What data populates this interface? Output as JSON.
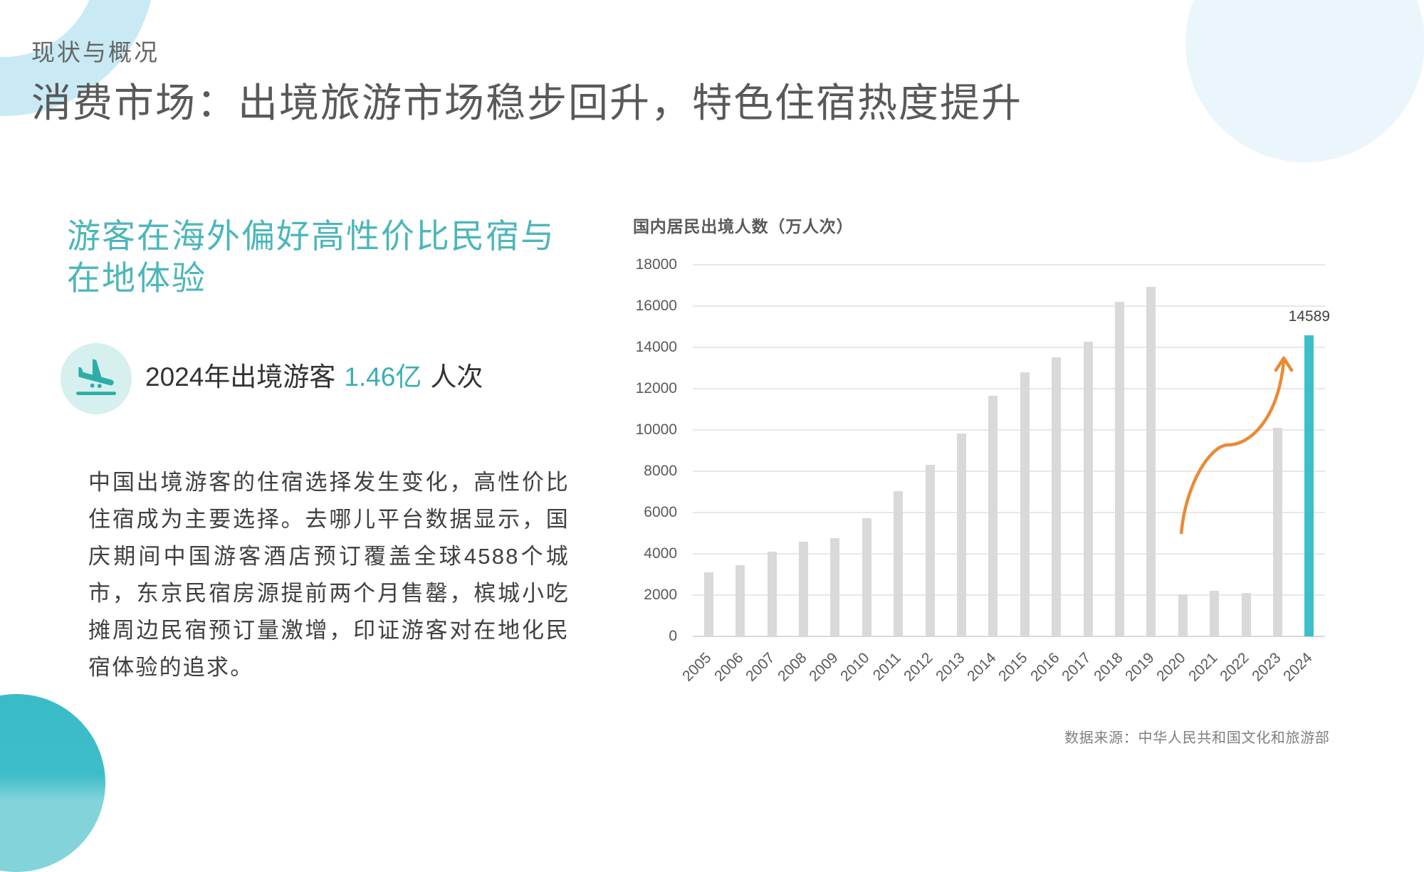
{
  "header": {
    "section_label": "现状与概况",
    "title": "消费市场：出境旅游市场稳步回升，特色住宿热度提升"
  },
  "left": {
    "subheading_lines": [
      "游客在海外偏好高性价比民宿与",
      "在地体验"
    ],
    "stat": {
      "icon": "flight-land-icon",
      "prefix": "2024年出境游客",
      "value": "1.46亿",
      "suffix": "人次"
    },
    "body_lines": [
      "中国出境游客的住宿选择发生变化，高性价比",
      "住宿成为主要选择。去哪儿平台数据显示，国",
      "庆期间中国游客酒店预订覆盖全球4588个城",
      "市，东京民宿房源提前两个月售罄，槟城小吃",
      "摊周边民宿预订量激增，印证游客对在地化民",
      "宿体验的追求。"
    ]
  },
  "chart": {
    "title": "国内居民出境人数（万人次）",
    "source": "数据来源：中华人民共和国文化和旅游部"
  },
  "chart_data": {
    "type": "bar",
    "title": "国内居民出境人数（万人次）",
    "categories": [
      "2005",
      "2006",
      "2007",
      "2008",
      "2009",
      "2010",
      "2011",
      "2012",
      "2013",
      "2014",
      "2015",
      "2016",
      "2017",
      "2018",
      "2019",
      "2020",
      "2021",
      "2022",
      "2023",
      "2024"
    ],
    "values": [
      3100,
      3450,
      4100,
      4580,
      4770,
      5740,
      7030,
      8320,
      9820,
      11660,
      12790,
      13510,
      14270,
      16200,
      16920,
      2030,
      2200,
      2100,
      10100,
      14589
    ],
    "highlight_index": 19,
    "data_labels": [
      {
        "category": "2024",
        "text": "14589"
      }
    ],
    "xlabel": "",
    "ylabel": "",
    "ylim": [
      0,
      18000
    ],
    "yticks": [
      0,
      2000,
      4000,
      6000,
      8000,
      10000,
      12000,
      14000,
      16000,
      18000
    ],
    "x_tick_rotation": -45,
    "grid": true,
    "legend": null,
    "annotations": [
      {
        "type": "curved-arrow",
        "from_category": "2020",
        "to_category": "2023",
        "direction": "up",
        "color": "#EA8A35"
      }
    ],
    "source": "数据来源：中华人民共和国文化和旅游部"
  },
  "theme": {
    "heading_teal": "#4DB6BA",
    "value_teal": "#3AAFB2",
    "icon_teal": "#2CADA8",
    "icon_bg": "#D6EFEF",
    "bar_gray": "#D9D9D9",
    "bar_highlight": "#3DBFCB",
    "arrow_orange": "#EA8A35",
    "ring_blue": "#C9EAF4",
    "pale_blue": "#EAF6FB",
    "circle_teal": "#3ABCC7"
  }
}
